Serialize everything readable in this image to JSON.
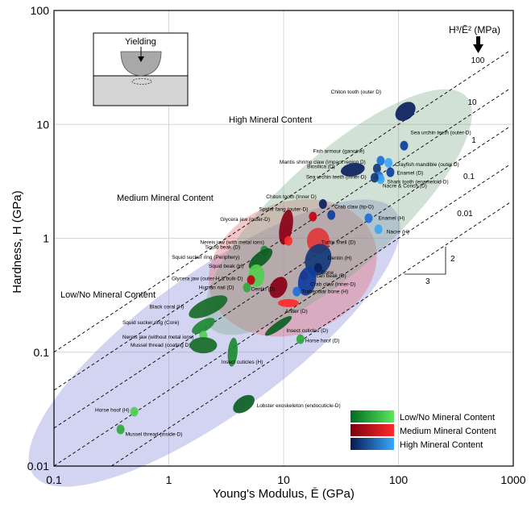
{
  "chart_data": {
    "type": "scatter",
    "xlabel": "Young's Modulus, Ē (GPa)",
    "ylabel": "Hardness, H (GPa)",
    "xscale": "log",
    "yscale": "log",
    "xlim": [
      0.1,
      1000
    ],
    "ylim": [
      0.01,
      100
    ],
    "x_ticks": [
      "0.1",
      "1",
      "10",
      "100",
      "1000"
    ],
    "y_ticks": [
      "0.01",
      "0.1",
      "1",
      "10",
      "100"
    ],
    "grid": true,
    "contour_title": "H³/Ē² (MPa)",
    "contours": [
      {
        "label": "100",
        "value": 100
      },
      {
        "label": "10",
        "value": 10
      },
      {
        "label": "1",
        "value": 1
      },
      {
        "label": "0.1",
        "value": 0.1
      },
      {
        "label": "0.01",
        "value": 0.01
      }
    ],
    "slope_labels": {
      "rise": "2",
      "run": "3"
    },
    "inset": {
      "label": "Yielding"
    },
    "regions": [
      {
        "name": "High Mineral Content",
        "color": "#8c8cdd"
      },
      {
        "name": "Medium Mineral Content",
        "color": "#e06870"
      },
      {
        "name": "Low/No Mineral Content",
        "color": "#7aa886"
      }
    ],
    "legend": {
      "position": "bottom-right",
      "items": [
        {
          "label": "Low/No Mineral Content",
          "dark": "#006b1f",
          "light": "#5be85b"
        },
        {
          "label": "Medium Mineral Content",
          "dark": "#7a0010",
          "light": "#ff2a2a"
        },
        {
          "label": "High Mineral Content",
          "dark": "#061a4e",
          "light": "#38a8ff"
        }
      ]
    },
    "materials": [
      {
        "name": "Chiton tooth (outer D)",
        "x": 115,
        "y": 13,
        "group": "high"
      },
      {
        "name": "Sea urchin teeth (outer-D)",
        "x": 112,
        "y": 6.5,
        "group": "high"
      },
      {
        "name": "Fish armour (ganoine)",
        "x": 70,
        "y": 4.8,
        "group": "high"
      },
      {
        "name": "Crayfish mandible (outer D)",
        "x": 82,
        "y": 4.6,
        "group": "high"
      },
      {
        "name": "Mantis shrimp claw (impact region D)",
        "x": 65,
        "y": 4.1,
        "group": "high"
      },
      {
        "name": "Biosilica (D)",
        "x": 40,
        "y": 4.0,
        "group": "high"
      },
      {
        "name": "Enamel (D)",
        "x": 85,
        "y": 3.8,
        "group": "high"
      },
      {
        "name": "Sea urchin teeth (inner-D)",
        "x": 68,
        "y": 3.5,
        "group": "high"
      },
      {
        "name": "Shark tooth (enameloid-D)",
        "x": 70,
        "y": 3.3,
        "group": "high"
      },
      {
        "name": "Nacre & Conch (D)",
        "x": 62,
        "y": 3.4,
        "group": "high"
      },
      {
        "name": "Chiton tooth (Inner D)",
        "x": 22,
        "y": 2.0,
        "group": "high"
      },
      {
        "name": "Spider fang (outer-D)",
        "x": 18,
        "y": 1.55,
        "group": "medium"
      },
      {
        "name": "Crab claw (tip-D)",
        "x": 26,
        "y": 1.6,
        "group": "high"
      },
      {
        "name": "Glycera jaw (outer-D)",
        "x": 10.5,
        "y": 1.25,
        "group": "medium"
      },
      {
        "name": "Enamel (H)",
        "x": 55,
        "y": 1.5,
        "group": "high"
      },
      {
        "name": "Nacre (H)",
        "x": 67,
        "y": 1.2,
        "group": "high"
      },
      {
        "name": "Nereis jaw (with metal ions)",
        "x": 11,
        "y": 0.95,
        "group": "medium"
      },
      {
        "name": "Turtle shell (D)",
        "x": 20,
        "y": 0.95,
        "group": "medium"
      },
      {
        "name": "Squid beak (D)",
        "x": 6.8,
        "y": 0.78,
        "group": "low"
      },
      {
        "name": "Squid sucker ring (Periphery)",
        "x": 6.3,
        "y": 0.66,
        "group": "low"
      },
      {
        "name": "Dentin (H)",
        "x": 20,
        "y": 0.65,
        "group": "high"
      },
      {
        "name": "Bone",
        "x": 20,
        "y": 0.55,
        "group": "high"
      },
      {
        "name": "Tucan beak (D)",
        "x": 15,
        "y": 0.47,
        "group": "medium"
      },
      {
        "name": "Squid beak (H)",
        "x": 5.8,
        "y": 0.47,
        "group": "low"
      },
      {
        "name": "Glycera jaw (outer-H & bulk-D)",
        "x": 5.2,
        "y": 0.43,
        "group": "medium"
      },
      {
        "name": "Crab claw (inner-D)",
        "x": 16,
        "y": 0.42,
        "group": "high"
      },
      {
        "name": "Human nail (D)",
        "x": 4.8,
        "y": 0.37,
        "group": "low"
      },
      {
        "name": "Dentin (D)",
        "x": 9,
        "y": 0.37,
        "group": "medium"
      },
      {
        "name": "Trabecular bone (H)",
        "x": 13,
        "y": 0.34,
        "group": "high"
      },
      {
        "name": "Antler (D)",
        "x": 11,
        "y": 0.27,
        "group": "medium"
      },
      {
        "name": "Black coral (H)",
        "x": 2.2,
        "y": 0.25,
        "group": "low"
      },
      {
        "name": "Squid sucker ring (Core)",
        "x": 2.0,
        "y": 0.17,
        "group": "low"
      },
      {
        "name": "Insect cuticles (D)",
        "x": 9,
        "y": 0.17,
        "group": "low"
      },
      {
        "name": "Nereis jaw (without metal ions)",
        "x": 2.0,
        "y": 0.14,
        "group": "low"
      },
      {
        "name": "Horse hoof (D)",
        "x": 14,
        "y": 0.13,
        "group": "low"
      },
      {
        "name": "Mussel thread (coating D)",
        "x": 2.0,
        "y": 0.115,
        "group": "low"
      },
      {
        "name": "Insect cuticles (H)",
        "x": 3.6,
        "y": 0.1,
        "group": "low"
      },
      {
        "name": "Lobster exoskeleton (endocuticle-D)",
        "x": 4.5,
        "y": 0.035,
        "group": "low"
      },
      {
        "name": "Horse hoof (H)",
        "x": 0.5,
        "y": 0.03,
        "group": "low"
      },
      {
        "name": "Mussel thread (inside-D)",
        "x": 0.38,
        "y": 0.021,
        "group": "low"
      }
    ]
  }
}
